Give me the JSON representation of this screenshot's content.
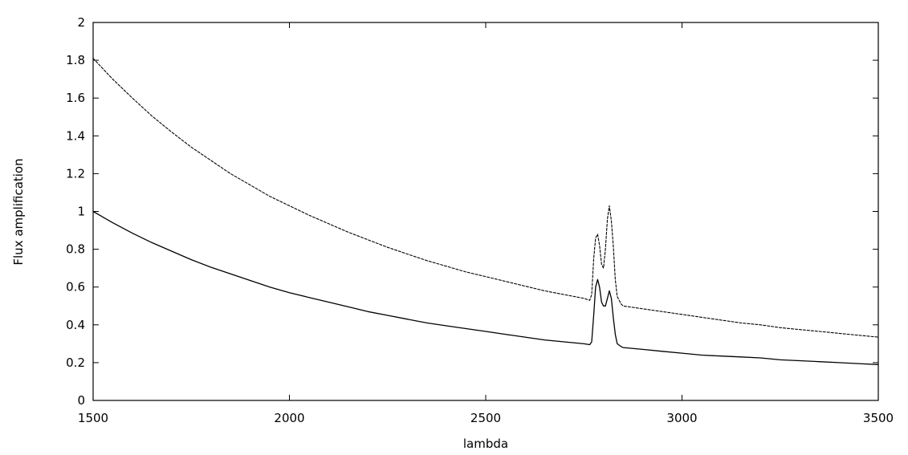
{
  "chart_data": {
    "type": "line",
    "title": "",
    "xlabel": "lambda",
    "ylabel": "Flux amplification",
    "xlim": [
      1500,
      3500
    ],
    "ylim": [
      0,
      2
    ],
    "xticks": [
      1500,
      2000,
      2500,
      3000,
      3500
    ],
    "xtick_labels": [
      "1500",
      "2000",
      "2500",
      "3000",
      "3500"
    ],
    "yticks": [
      0,
      0.2,
      0.4,
      0.6,
      0.8,
      1,
      1.2,
      1.4,
      1.6,
      1.8,
      2
    ],
    "ytick_labels": [
      "0",
      "0.2",
      "0.4",
      "0.6",
      "0.8",
      "1",
      "1.2",
      "1.4",
      "1.6",
      "1.8",
      "2"
    ],
    "grid": false,
    "legend": "none",
    "series": [
      {
        "style": "solid",
        "color": "#000000",
        "points": [
          [
            1500,
            1.0
          ],
          [
            1550,
            0.94
          ],
          [
            1600,
            0.885
          ],
          [
            1650,
            0.835
          ],
          [
            1700,
            0.79
          ],
          [
            1750,
            0.745
          ],
          [
            1800,
            0.705
          ],
          [
            1850,
            0.67
          ],
          [
            1900,
            0.635
          ],
          [
            1950,
            0.6
          ],
          [
            2000,
            0.57
          ],
          [
            2050,
            0.545
          ],
          [
            2100,
            0.52
          ],
          [
            2150,
            0.495
          ],
          [
            2200,
            0.47
          ],
          [
            2250,
            0.45
          ],
          [
            2300,
            0.43
          ],
          [
            2350,
            0.41
          ],
          [
            2400,
            0.395
          ],
          [
            2450,
            0.38
          ],
          [
            2500,
            0.365
          ],
          [
            2550,
            0.35
          ],
          [
            2600,
            0.335
          ],
          [
            2650,
            0.32
          ],
          [
            2700,
            0.31
          ],
          [
            2750,
            0.3
          ],
          [
            2765,
            0.295
          ],
          [
            2770,
            0.31
          ],
          [
            2775,
            0.45
          ],
          [
            2780,
            0.6
          ],
          [
            2785,
            0.64
          ],
          [
            2790,
            0.6
          ],
          [
            2795,
            0.52
          ],
          [
            2800,
            0.5
          ],
          [
            2805,
            0.5
          ],
          [
            2810,
            0.54
          ],
          [
            2815,
            0.58
          ],
          [
            2820,
            0.54
          ],
          [
            2825,
            0.44
          ],
          [
            2830,
            0.35
          ],
          [
            2835,
            0.3
          ],
          [
            2845,
            0.285
          ],
          [
            2850,
            0.28
          ],
          [
            2900,
            0.27
          ],
          [
            2950,
            0.26
          ],
          [
            3000,
            0.25
          ],
          [
            3050,
            0.24
          ],
          [
            3100,
            0.235
          ],
          [
            3150,
            0.23
          ],
          [
            3200,
            0.225
          ],
          [
            3250,
            0.215
          ],
          [
            3300,
            0.21
          ],
          [
            3350,
            0.205
          ],
          [
            3400,
            0.2
          ],
          [
            3450,
            0.195
          ],
          [
            3500,
            0.19
          ]
        ]
      },
      {
        "style": "dashed",
        "color": "#000000",
        "points": [
          [
            1500,
            1.81
          ],
          [
            1550,
            1.7
          ],
          [
            1600,
            1.6
          ],
          [
            1650,
            1.505
          ],
          [
            1700,
            1.42
          ],
          [
            1750,
            1.34
          ],
          [
            1800,
            1.27
          ],
          [
            1850,
            1.2
          ],
          [
            1900,
            1.14
          ],
          [
            1950,
            1.08
          ],
          [
            2000,
            1.03
          ],
          [
            2050,
            0.98
          ],
          [
            2100,
            0.935
          ],
          [
            2150,
            0.89
          ],
          [
            2200,
            0.85
          ],
          [
            2250,
            0.81
          ],
          [
            2300,
            0.775
          ],
          [
            2350,
            0.74
          ],
          [
            2400,
            0.71
          ],
          [
            2450,
            0.68
          ],
          [
            2500,
            0.655
          ],
          [
            2550,
            0.63
          ],
          [
            2600,
            0.605
          ],
          [
            2650,
            0.58
          ],
          [
            2700,
            0.56
          ],
          [
            2750,
            0.54
          ],
          [
            2765,
            0.53
          ],
          [
            2770,
            0.56
          ],
          [
            2775,
            0.75
          ],
          [
            2780,
            0.86
          ],
          [
            2785,
            0.88
          ],
          [
            2790,
            0.82
          ],
          [
            2795,
            0.72
          ],
          [
            2800,
            0.7
          ],
          [
            2805,
            0.8
          ],
          [
            2810,
            0.96
          ],
          [
            2815,
            1.03
          ],
          [
            2820,
            0.95
          ],
          [
            2825,
            0.82
          ],
          [
            2830,
            0.64
          ],
          [
            2835,
            0.55
          ],
          [
            2845,
            0.51
          ],
          [
            2850,
            0.5
          ],
          [
            2900,
            0.485
          ],
          [
            2950,
            0.47
          ],
          [
            3000,
            0.455
          ],
          [
            3050,
            0.44
          ],
          [
            3100,
            0.425
          ],
          [
            3150,
            0.41
          ],
          [
            3200,
            0.4
          ],
          [
            3250,
            0.385
          ],
          [
            3300,
            0.375
          ],
          [
            3350,
            0.365
          ],
          [
            3400,
            0.355
          ],
          [
            3450,
            0.345
          ],
          [
            3500,
            0.335
          ]
        ]
      }
    ]
  }
}
